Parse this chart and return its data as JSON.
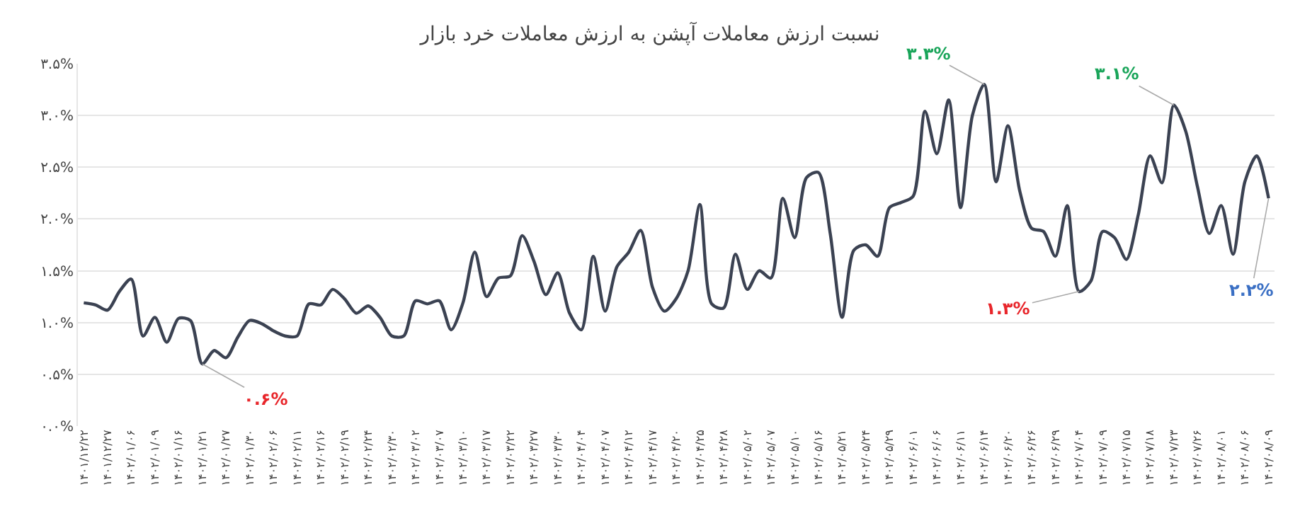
{
  "chart_data": {
    "type": "line",
    "title": "نسبت ارزش معاملات آپشن به ارزش معاملات خرد بازار",
    "categories": [
      "۱۴۰۱/۱۲/۲۲",
      null,
      "۱۴۰۱/۱۲/۲۷",
      null,
      "۱۴۰۲/۰۱/۰۶",
      null,
      "۱۴۰۲/۰۱/۰۹",
      null,
      "۱۴۰۲/۰۱/۱۶",
      null,
      "۱۴۰۲/۰۱/۲۱",
      null,
      "۱۴۰۲/۰۱/۲۷",
      null,
      "۱۴۰۲/۰۱/۳۰",
      null,
      "۱۴۰۲/۰۲/۰۶",
      null,
      "۱۴۰۲/۰۲/۱۱",
      null,
      "۱۴۰۲/۰۲/۱۶",
      null,
      "۱۴۰۲/۰۲/۱۹",
      null,
      "۱۴۰۲/۰۲/۲۴",
      null,
      "۱۴۰۲/۰۲/۳۰",
      null,
      "۱۴۰۲/۰۳/۰۲",
      null,
      "۱۴۰۲/۰۳/۰۷",
      null,
      "۱۴۰۲/۰۳/۱۰",
      null,
      "۱۴۰۲/۰۳/۱۷",
      null,
      "۱۴۰۲/۰۳/۲۲",
      null,
      "۱۴۰۲/۰۳/۲۷",
      null,
      "۱۴۰۲/۰۳/۳۰",
      null,
      "۱۴۰۲/۰۴/۰۴",
      null,
      "۱۴۰۲/۰۴/۰۷",
      null,
      "۱۴۰۲/۰۴/۱۲",
      null,
      "۱۴۰۲/۰۴/۱۷",
      null,
      "۱۴۰۲/۰۴/۲۰",
      null,
      "۱۴۰۲/۰۴/۲۵",
      null,
      "۱۴۰۲/۰۴/۲۸",
      null,
      "۱۴۰۲/۰۵/۰۲",
      null,
      "۱۴۰۲/۰۵/۰۷",
      null,
      "۱۴۰۲/۰۵/۱۰",
      null,
      "۱۴۰۲/۰۵/۱۶",
      null,
      "۱۴۰۲/۰۵/۲۱",
      null,
      "۱۴۰۲/۰۵/۲۴",
      null,
      "۱۴۰۲/۰۵/۲۹",
      null,
      "۱۴۰۲/۰۶/۰۱",
      null,
      "۱۴۰۲/۰۶/۰۶",
      null,
      "۱۴۰۲/۰۶/۱۱",
      null,
      "۱۴۰۲/۰۶/۱۴",
      null,
      "۱۴۰۲/۰۶/۲۰",
      null,
      "۱۴۰۲/۰۶/۲۶",
      null,
      "۱۴۰۲/۰۶/۲۹",
      null,
      "۱۴۰۲/۰۷/۰۴",
      null,
      "۱۴۰۲/۰۷/۰۹",
      null,
      "۱۴۰۲/۰۷/۱۵",
      null,
      "۱۴۰۲/۰۷/۱۸",
      null,
      "۱۴۰۲/۰۷/۲۳",
      null,
      "۱۴۰۲/۰۷/۲۶",
      null,
      "۱۴۰۲/۰۸/۰۱",
      null,
      "۱۴۰۲/۰۸/۰۶",
      null,
      "۱۴۰۲/۰۸/۰۹"
    ],
    "series": [
      {
        "color": "#3b4252",
        "values": [
          1.19,
          1.17,
          1.12,
          1.3,
          1.42,
          0.87,
          1.05,
          0.81,
          1.04,
          1.02,
          0.6,
          0.73,
          0.66,
          0.86,
          1.02,
          0.99,
          0.92,
          0.87,
          0.87,
          1.18,
          1.17,
          1.32,
          1.23,
          1.09,
          1.16,
          1.05,
          0.87,
          0.87,
          1.21,
          1.18,
          1.21,
          0.93,
          1.19,
          1.68,
          1.25,
          1.43,
          1.45,
          1.84,
          1.59,
          1.27,
          1.48,
          1.09,
          0.93,
          1.64,
          1.11,
          1.54,
          1.68,
          1.89,
          1.34,
          1.11,
          1.23,
          1.5,
          2.14,
          1.18,
          1.14,
          1.66,
          1.32,
          1.5,
          1.43,
          2.2,
          1.82,
          2.4,
          2.45,
          1.86,
          1.05,
          1.7,
          1.75,
          1.64,
          2.11,
          2.16,
          2.22,
          3.04,
          2.63,
          3.15,
          2.11,
          3.0,
          3.3,
          2.36,
          2.9,
          2.27,
          1.91,
          1.88,
          1.64,
          2.13,
          1.3,
          1.4,
          1.88,
          1.82,
          1.61,
          2.04,
          2.61,
          2.35,
          3.1,
          2.85,
          2.31,
          1.86,
          2.13,
          1.66,
          2.36,
          2.61,
          2.2
        ]
      }
    ],
    "ylim": [
      0,
      3.5
    ],
    "yticks": [
      {
        "value": 0,
        "label": "۰.۰%"
      },
      {
        "value": 0.5,
        "label": "۰.۵%"
      },
      {
        "value": 1.0,
        "label": "۱.۰%"
      },
      {
        "value": 1.5,
        "label": "۱.۵%"
      },
      {
        "value": 2.0,
        "label": "۲.۰%"
      },
      {
        "value": 2.5,
        "label": "۲.۵%"
      },
      {
        "value": 3.0,
        "label": "۳.۰%"
      },
      {
        "value": 3.5,
        "label": "۳.۵%"
      }
    ],
    "grid": "y",
    "legend": false,
    "marker": "none",
    "line_style": "solid",
    "annotations": [
      {
        "text": "۰.۶%",
        "x": "۱۴۰۲/۰۱/۲۱",
        "y": 0.6
      },
      {
        "text": "۳.۳%",
        "x": "۱۴۰۲/۰۶/۱۴",
        "y": 3.3
      },
      {
        "text": "۱.۳%",
        "x": "۱۴۰۲/۰۷/۰۴",
        "y": 1.3
      },
      {
        "text": "۳.۱%",
        "x": "۱۴۰۲/۰۷/۲۳",
        "y": 3.1
      },
      {
        "text": "۲.۲%",
        "x": "۱۴۰۲/۰۸/۰۹",
        "y": 2.2
      }
    ]
  }
}
